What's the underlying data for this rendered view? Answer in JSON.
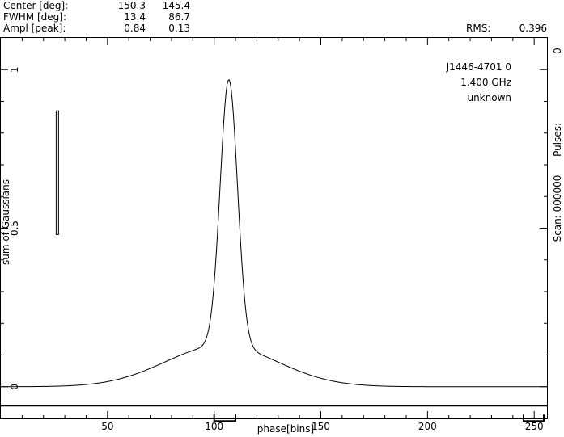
{
  "header": {
    "rows": [
      {
        "label": "Center [deg]:",
        "v1": "150.3",
        "v2": "145.4"
      },
      {
        "label": "FWHM  [deg]:",
        "v1": "13.4",
        "v2": "86.7"
      },
      {
        "label": "Ampl  [peak]:",
        "v1": "0.84",
        "v2": "0.13"
      }
    ],
    "rms_label": "RMS:",
    "rms_value": "0.396"
  },
  "info": {
    "source": "J1446-4701 0",
    "frequency": "1.400 GHz",
    "telescope": "unknown"
  },
  "side": {
    "pulses": "Pulses:",
    "pulses_value": "0",
    "scan": "Scan: 000000"
  },
  "chart_data": {
    "type": "line",
    "xlabel": "phase[bins]",
    "ylabel": "sum of Gaussians",
    "xlim": [
      0,
      256
    ],
    "ylim": [
      -0.1,
      1.1
    ],
    "xticks": [
      50,
      100,
      150,
      200,
      250
    ],
    "yticks": [
      0,
      0.5,
      1
    ],
    "yticklabels": [
      "0",
      "0.5",
      "1"
    ],
    "grid": false,
    "series": [
      {
        "components": [
          {
            "center_deg": 150.3,
            "fwhm_deg": 13.4,
            "ampl": 0.84
          },
          {
            "center_deg": 145.4,
            "fwhm_deg": 86.7,
            "ampl": 0.13
          }
        ]
      }
    ],
    "error_bar": {
      "x": 26.5,
      "y_low": 0.48,
      "y_high": 0.87
    },
    "baseline_y": -0.06,
    "on_pulse_windows": [
      [
        100,
        110
      ]
    ],
    "off_pulse_windows": [
      [
        245,
        256
      ]
    ]
  }
}
